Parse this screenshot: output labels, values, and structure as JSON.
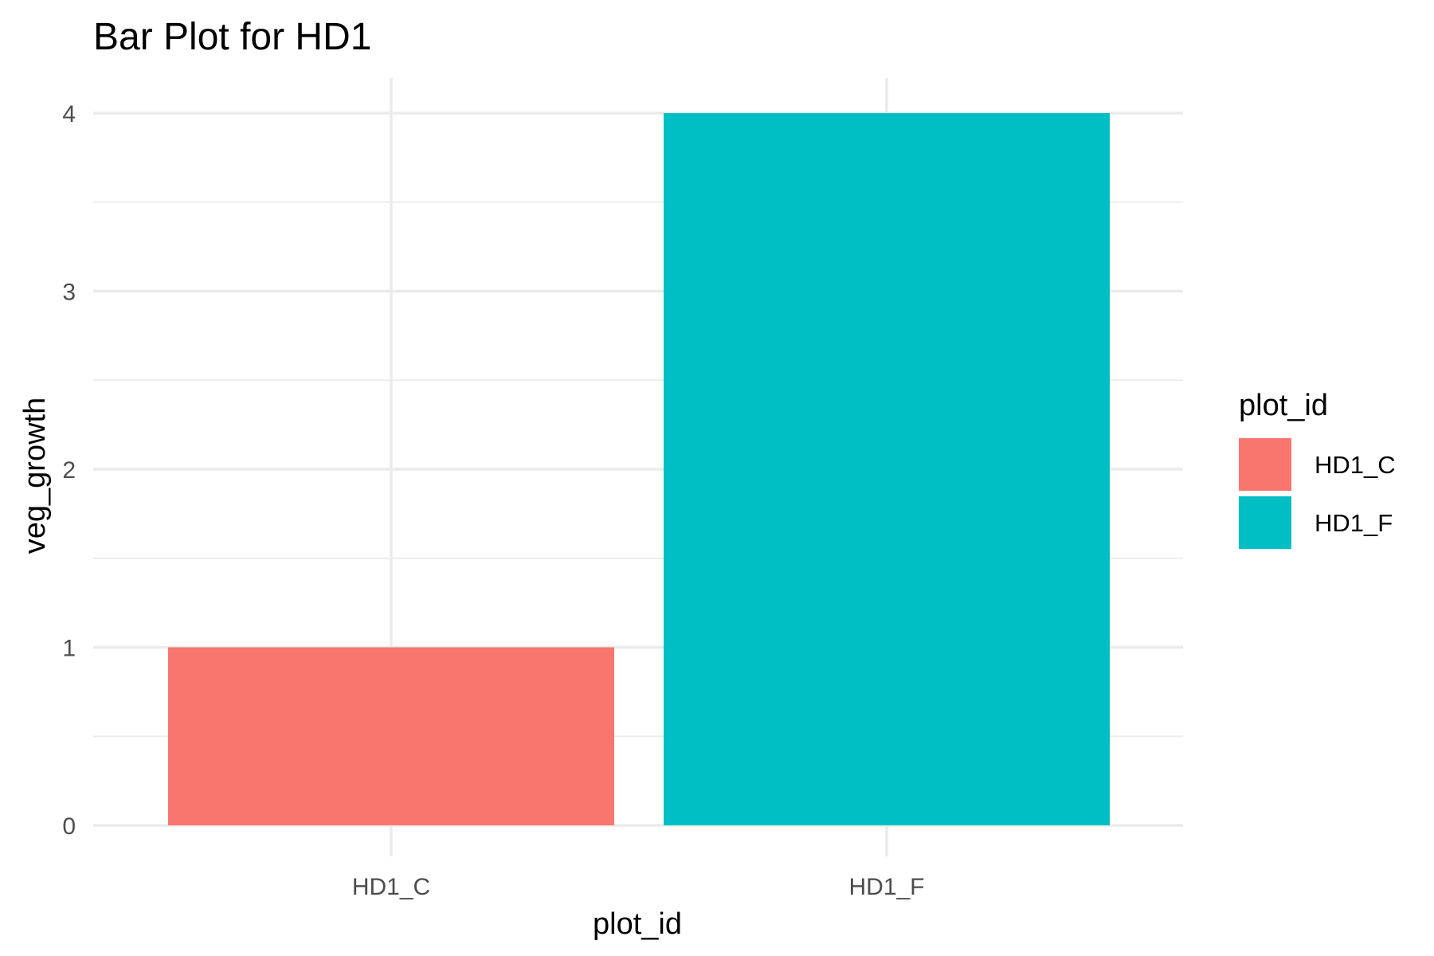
{
  "chart_data": {
    "type": "bar",
    "title": "Bar Plot for HD1",
    "xlabel": "plot_id",
    "ylabel": "veg_growth",
    "categories": [
      "HD1_C",
      "HD1_F"
    ],
    "values": [
      1,
      4
    ],
    "colors": [
      "#F8766D",
      "#00BFC4"
    ],
    "ylim": [
      0,
      4
    ],
    "yticks": [
      0,
      1,
      2,
      3,
      4
    ],
    "grid": true,
    "legend": {
      "title": "plot_id",
      "placement": "right",
      "entries": [
        "HD1_C",
        "HD1_F"
      ]
    }
  }
}
